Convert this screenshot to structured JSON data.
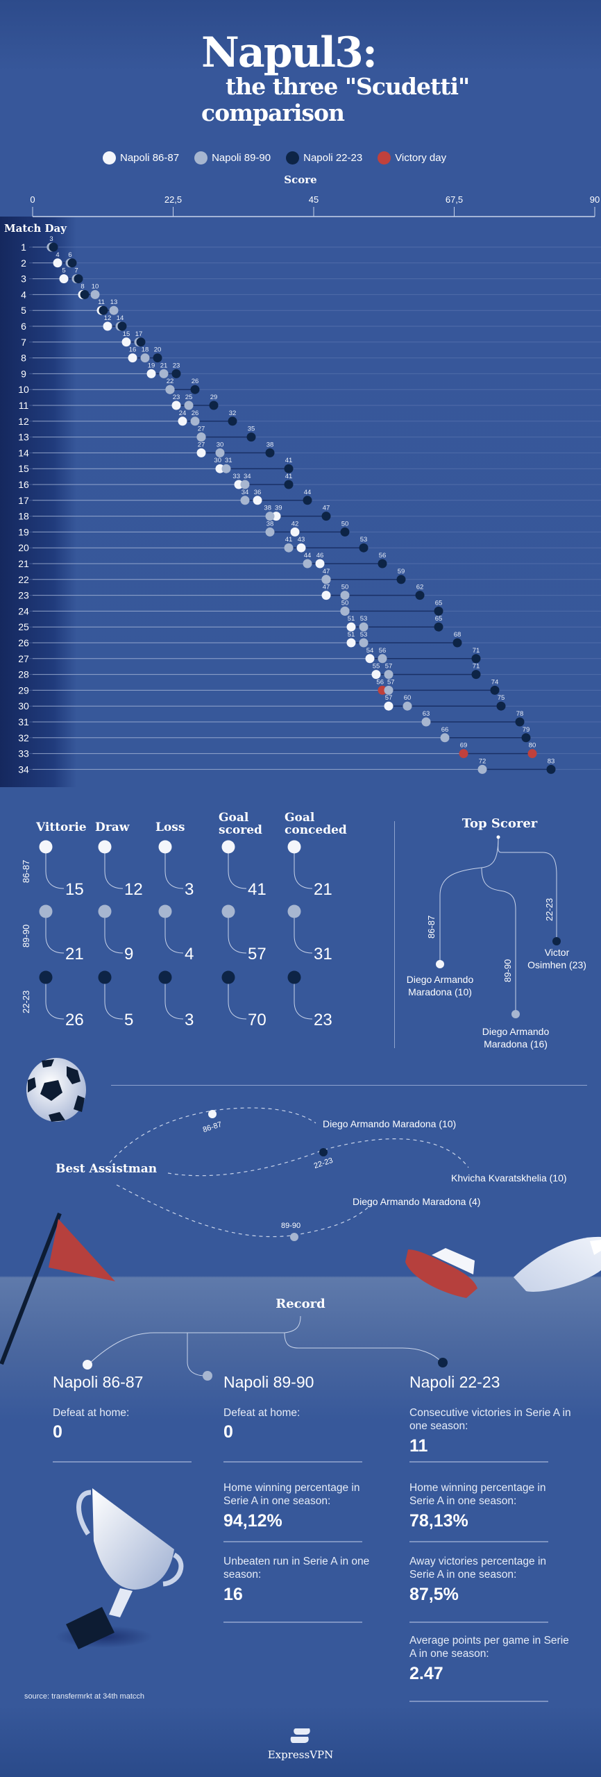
{
  "header": {
    "title_line1": "Napul3:",
    "title_line2": "the three \"Scudetti\"",
    "title_line3": "comparison"
  },
  "legend": [
    {
      "label": "Napoli 86-87",
      "color": "#f4f6fb"
    },
    {
      "label": "Napoli 89-90",
      "color": "#a7b6d0"
    },
    {
      "label": "Napoli 22-23",
      "color": "#0d2446"
    },
    {
      "label": "Victory day",
      "color": "#c0413c"
    }
  ],
  "chart_data": {
    "type": "scatter",
    "xlabel": "Score",
    "ylabel": "Match Day",
    "xlim": [
      0,
      90
    ],
    "x_ticks": [
      "0",
      "22,5",
      "45",
      "67,5",
      "90"
    ],
    "x_tick_values": [
      0,
      22.5,
      45,
      67.5,
      90
    ],
    "match_days": [
      1,
      2,
      3,
      4,
      5,
      6,
      7,
      8,
      9,
      10,
      11,
      12,
      13,
      14,
      15,
      16,
      17,
      18,
      19,
      20,
      21,
      22,
      23,
      24,
      25,
      26,
      27,
      28,
      29,
      30,
      31,
      32,
      33,
      34
    ],
    "victory_color": "#c0413c",
    "series": [
      {
        "name": "Napoli 86-87",
        "color": "#f4f6fb",
        "victory_day": 29,
        "values": [
          3,
          4,
          5,
          8,
          11,
          12,
          15,
          16,
          19,
          22,
          23,
          24,
          27,
          27,
          30,
          33,
          36,
          39,
          42,
          43,
          46,
          47,
          47,
          50,
          51,
          51,
          54,
          55,
          56,
          57,
          null,
          null,
          null,
          null
        ]
      },
      {
        "name": "Napoli 89-90",
        "color": "#a7b6d0",
        "victory_day": 33,
        "values": [
          3,
          6,
          7,
          10,
          13,
          14,
          17,
          18,
          21,
          22,
          25,
          26,
          27,
          30,
          31,
          34,
          34,
          38,
          38,
          41,
          44,
          47,
          50,
          50,
          53,
          53,
          56,
          57,
          57,
          60,
          63,
          66,
          69,
          72
        ]
      },
      {
        "name": "Napoli 22-23",
        "color": "#0d2446",
        "victory_day": 33,
        "values": [
          3,
          6,
          7,
          8,
          11,
          14,
          17,
          20,
          23,
          26,
          29,
          32,
          35,
          38,
          41,
          41,
          44,
          47,
          50,
          53,
          56,
          59,
          62,
          65,
          65,
          68,
          71,
          71,
          74,
          75,
          78,
          79,
          80,
          83
        ]
      }
    ]
  },
  "stats": {
    "columns": [
      "Vittorie",
      "Draw",
      "Loss",
      "Goal scored",
      "Goal conceded"
    ],
    "rows": [
      {
        "season": "86-87",
        "color": "#f4f6fb",
        "values": [
          "15",
          "12",
          "3",
          "41",
          "21"
        ]
      },
      {
        "season": "89-90",
        "color": "#a7b6d0",
        "values": [
          "21",
          "9",
          "4",
          "57",
          "31"
        ]
      },
      {
        "season": "22-23",
        "color": "#0d2446",
        "values": [
          "26",
          "5",
          "3",
          "70",
          "23"
        ]
      }
    ]
  },
  "top_scorer": {
    "title": "Top Scorer",
    "entries": [
      {
        "season": "86-87",
        "name_line1": "Diego Armando",
        "name_line2": "Maradona (10)"
      },
      {
        "season": "89-90",
        "name_line1": "Diego Armando",
        "name_line2": "Maradona (16)"
      },
      {
        "season": "22-23",
        "name_line1": "Victor",
        "name_line2": "Osimhen (23)"
      }
    ]
  },
  "best_assistman": {
    "title": "Best Assistman",
    "entries": [
      {
        "season": "86-87",
        "name": "Diego Armando Maradona (10)"
      },
      {
        "season": "22-23",
        "name": "Khvicha Kvaratskhelia (10)"
      },
      {
        "season": "89-90",
        "name": "Diego Armando Maradona (4)"
      }
    ]
  },
  "record": {
    "title": "Record",
    "columns": [
      {
        "team": "Napoli 86-87",
        "items": [
          {
            "label": "Defeat at home:",
            "value": "0"
          }
        ]
      },
      {
        "team": "Napoli 89-90",
        "items": [
          {
            "label": "Defeat at home:",
            "value": "0"
          },
          {
            "label": "Home winning percentage in Serie A in one season:",
            "value": "94,12%"
          },
          {
            "label": "Unbeaten run in Serie A in one season:",
            "value": "16"
          }
        ]
      },
      {
        "team": "Napoli 22-23",
        "items": [
          {
            "label": "Consecutive victories in Serie A in one season:",
            "value": "11"
          },
          {
            "label": "Home winning percentage in Serie A in one season:",
            "value": "78,13%"
          },
          {
            "label": "Away victories percentage in Serie A in one season:",
            "value": "87,5%"
          },
          {
            "label": "Average points per game in Serie A in one season:",
            "value": "2.47"
          }
        ]
      }
    ]
  },
  "footer": {
    "source": "source: transfermrkt at 34th matcch",
    "logo_text": "ExpressVPN"
  }
}
